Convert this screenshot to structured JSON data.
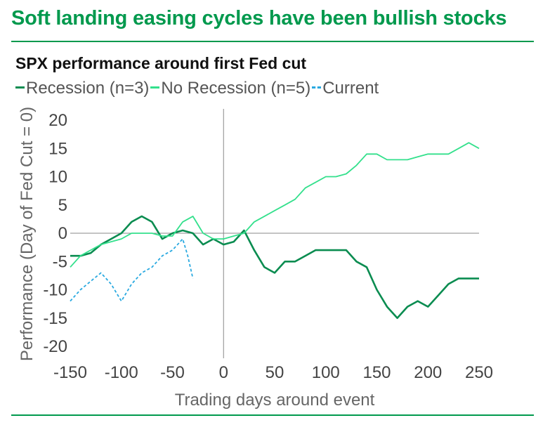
{
  "headline": "Soft landing easing cycles have been bullish stocks",
  "colors": {
    "brand": "#00994d",
    "recession": "#0a8c50",
    "no_recession": "#33e08c",
    "current": "#29a9e0"
  },
  "chart_data": {
    "type": "line",
    "title": "SPX performance around first Fed cut",
    "xlabel": "Trading days around event",
    "ylabel": "Performance (Day of Fed Cut = 0)",
    "xlim": [
      -150,
      250
    ],
    "ylim": [
      -20,
      20
    ],
    "x_ticks": [
      -150,
      -100,
      -50,
      0,
      50,
      100,
      150,
      200,
      250
    ],
    "y_ticks": [
      20,
      15,
      10,
      5,
      0,
      -5,
      -10,
      -15,
      -20
    ],
    "x_tick_labels": [
      "-150",
      "-100",
      "-50",
      "0",
      "50",
      "100",
      "150",
      "200",
      "250"
    ],
    "y_tick_labels": [
      "20",
      "15",
      "10",
      "5",
      "0",
      "-5",
      "-10",
      "-15",
      "-20"
    ],
    "legend_position": "top",
    "series": [
      {
        "name": "Recession (n=3)",
        "color": "#0a8c50",
        "style": "solid",
        "x": [
          -150,
          -140,
          -130,
          -120,
          -110,
          -100,
          -90,
          -80,
          -70,
          -60,
          -50,
          -40,
          -30,
          -20,
          -10,
          0,
          10,
          20,
          30,
          40,
          50,
          60,
          70,
          80,
          90,
          100,
          110,
          120,
          130,
          140,
          150,
          160,
          170,
          180,
          190,
          200,
          210,
          220,
          230,
          240,
          250
        ],
        "y": [
          -4,
          -4,
          -3.5,
          -2,
          -1,
          0,
          2,
          3,
          2,
          -1,
          0,
          0.5,
          0,
          -2,
          -1,
          -2,
          -1.5,
          0.5,
          -3,
          -6,
          -7,
          -5,
          -5,
          -4,
          -3,
          -3,
          -3,
          -3,
          -5,
          -6,
          -10,
          -13,
          -15,
          -13,
          -12,
          -13,
          -11,
          -9,
          -8,
          -8,
          -8
        ]
      },
      {
        "name": "No Recession (n=5)",
        "color": "#33e08c",
        "style": "solid",
        "x": [
          -150,
          -140,
          -130,
          -120,
          -110,
          -100,
          -90,
          -80,
          -70,
          -60,
          -50,
          -40,
          -30,
          -20,
          -10,
          0,
          10,
          20,
          30,
          40,
          50,
          60,
          70,
          80,
          90,
          100,
          110,
          120,
          130,
          140,
          150,
          160,
          170,
          180,
          190,
          200,
          210,
          220,
          230,
          240,
          250
        ],
        "y": [
          -6,
          -4,
          -3,
          -2,
          -1.5,
          -1,
          0,
          0,
          0,
          -0.5,
          -0.5,
          2,
          3,
          0,
          -1,
          -1,
          -0.5,
          0,
          2,
          3,
          4,
          5,
          6,
          8,
          9,
          10,
          10,
          10.5,
          12,
          14,
          14,
          13,
          13,
          13,
          13.5,
          14,
          14,
          14,
          15,
          16,
          15
        ]
      },
      {
        "name": "Current",
        "color": "#29a9e0",
        "style": "dashed",
        "x": [
          -150,
          -140,
          -130,
          -120,
          -110,
          -100,
          -90,
          -80,
          -70,
          -60,
          -50,
          -40,
          -35,
          -30
        ],
        "y": [
          -12,
          -10,
          -8.5,
          -7,
          -9,
          -12,
          -9,
          -7,
          -6,
          -4,
          -3,
          -1,
          -4,
          -8
        ]
      }
    ]
  }
}
